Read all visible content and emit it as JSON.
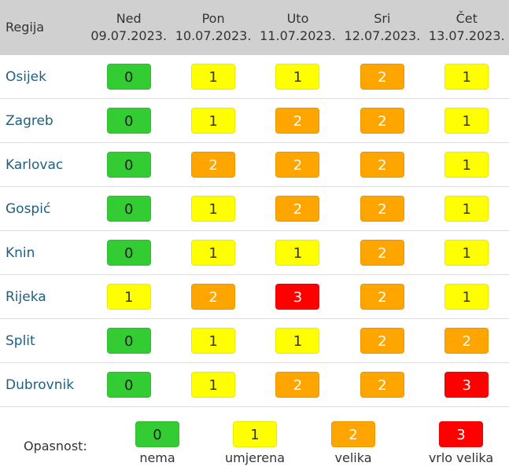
{
  "header": {
    "region_label": "Regija",
    "days": [
      {
        "day": "Ned",
        "date": "09.07.2023."
      },
      {
        "day": "Pon",
        "date": "10.07.2023."
      },
      {
        "day": "Uto",
        "date": "11.07.2023."
      },
      {
        "day": "Sri",
        "date": "12.07.2023."
      },
      {
        "day": "Čet",
        "date": "13.07.2023."
      }
    ]
  },
  "rows": [
    {
      "region": "Osijek",
      "levels": [
        "0",
        "1",
        "1",
        "2",
        "1"
      ]
    },
    {
      "region": "Zagreb",
      "levels": [
        "0",
        "1",
        "2",
        "2",
        "1"
      ]
    },
    {
      "region": "Karlovac",
      "levels": [
        "0",
        "2",
        "2",
        "2",
        "1"
      ]
    },
    {
      "region": "Gospić",
      "levels": [
        "0",
        "1",
        "2",
        "2",
        "1"
      ]
    },
    {
      "region": "Knin",
      "levels": [
        "0",
        "1",
        "1",
        "2",
        "1"
      ]
    },
    {
      "region": "Rijeka",
      "levels": [
        "1",
        "2",
        "3",
        "2",
        "1"
      ]
    },
    {
      "region": "Split",
      "levels": [
        "0",
        "1",
        "1",
        "2",
        "2"
      ]
    },
    {
      "region": "Dubrovnik",
      "levels": [
        "0",
        "1",
        "2",
        "2",
        "3"
      ]
    }
  ],
  "legend": {
    "label": "Opasnost:",
    "items": [
      {
        "level": "0",
        "caption": "nema"
      },
      {
        "level": "1",
        "caption": "umjerena"
      },
      {
        "level": "2",
        "caption": "velika"
      },
      {
        "level": "3",
        "caption": "vrlo velika"
      }
    ]
  },
  "colors": {
    "0": "#33cc33",
    "1": "#ffff00",
    "2": "#ffa500",
    "3": "#ff0000"
  }
}
